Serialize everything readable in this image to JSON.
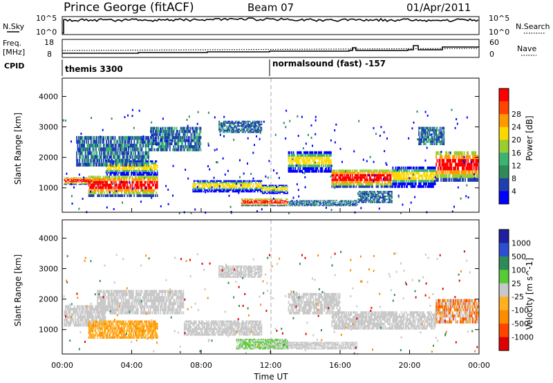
{
  "header": {
    "station": "Prince George (fitACF)",
    "beam": "Beam 07",
    "date": "01/Apr/2011"
  },
  "sky_panel": {
    "left_label": "N.Sky",
    "left_ticks": [
      "10^5",
      "10^0"
    ],
    "right_label": "N.Search",
    "right_ticks": [
      "10^5",
      "10^0"
    ]
  },
  "freq_panel": {
    "left_label_1": "Freq.",
    "left_label_2": "[MHz]",
    "left_ticks": [
      "18",
      "8"
    ],
    "right_label": "Nave",
    "right_ticks": [
      "60",
      "0"
    ]
  },
  "cpid": {
    "label": "CPID",
    "program_1": "themis 3300",
    "program_2": "normalsound (fast) -157"
  },
  "chart_data": [
    {
      "type": "heatmap",
      "name": "power",
      "ylabel": "Slant Range [km]",
      "yticks": [
        "1000",
        "2000",
        "3000",
        "4000"
      ],
      "ylim": [
        200,
        4600
      ],
      "xlim": [
        0,
        24
      ],
      "colorbar": {
        "label": "Power [dB]",
        "ticks": [
          "4",
          "8",
          "12",
          "16",
          "20",
          "24",
          "28"
        ],
        "colors": [
          "#0000ff",
          "#1f3fb0",
          "#2e8b57",
          "#3cb371",
          "#9acd32",
          "#ffd700",
          "#ff9900",
          "#ff4500",
          "#ff0000"
        ]
      },
      "echo_regions": [
        {
          "t0": 0.1,
          "t1": 2.5,
          "r0": 1100,
          "r1": 1350,
          "level": "high"
        },
        {
          "t0": 2.5,
          "t1": 5.5,
          "r0": 1400,
          "r1": 1900,
          "level": "medium"
        },
        {
          "t0": 1.5,
          "t1": 5.5,
          "r0": 700,
          "r1": 1400,
          "level": "high"
        },
        {
          "t0": 0.8,
          "t1": 5.0,
          "r0": 1700,
          "r1": 2700,
          "level": "low"
        },
        {
          "t0": 5.0,
          "t1": 8.0,
          "r0": 2200,
          "r1": 3000,
          "level": "low"
        },
        {
          "t0": 7.5,
          "t1": 11.5,
          "r0": 850,
          "r1": 1250,
          "level": "medium"
        },
        {
          "t0": 9.0,
          "t1": 11.5,
          "r0": 2800,
          "r1": 3200,
          "level": "low"
        },
        {
          "t0": 10.3,
          "t1": 13.0,
          "r0": 400,
          "r1": 650,
          "level": "high"
        },
        {
          "t0": 11.5,
          "t1": 13.0,
          "r0": 800,
          "r1": 1100,
          "level": "medium"
        },
        {
          "t0": 13.0,
          "t1": 15.5,
          "r0": 1500,
          "r1": 2200,
          "level": "medium"
        },
        {
          "t0": 13.0,
          "t1": 17.0,
          "r0": 400,
          "r1": 600,
          "level": "low"
        },
        {
          "t0": 15.5,
          "t1": 19.0,
          "r0": 1000,
          "r1": 1600,
          "level": "high"
        },
        {
          "t0": 19.0,
          "t1": 21.5,
          "r0": 1000,
          "r1": 1700,
          "level": "medium"
        },
        {
          "t0": 21.5,
          "t1": 24.0,
          "r0": 1200,
          "r1": 2200,
          "level": "high"
        },
        {
          "t0": 20.5,
          "t1": 22.0,
          "r0": 2400,
          "r1": 3000,
          "level": "low"
        },
        {
          "t0": 17.0,
          "t1": 19.0,
          "r0": 500,
          "r1": 900,
          "level": "low"
        }
      ]
    },
    {
      "type": "heatmap",
      "name": "velocity",
      "ylabel": "Slant Range [km]",
      "yticks": [
        "1000",
        "2000",
        "3000",
        "4000"
      ],
      "ylim": [
        200,
        4600
      ],
      "xlim": [
        0,
        24
      ],
      "xticks": [
        "00:00",
        "04:00",
        "08:00",
        "12:00",
        "16:00",
        "20:00",
        "00:00"
      ],
      "xlabel": "Time UT",
      "colorbar": {
        "label": "Velocity [m s^-1]",
        "ticks": [
          "1000",
          "500",
          "100",
          "25",
          "-25",
          "-100",
          "-500",
          "-1000"
        ],
        "colors": [
          "#2020a0",
          "#2b4fd0",
          "#2e8b57",
          "#55cc33",
          "#c8c8c8",
          "#ffb020",
          "#ff8c00",
          "#ff4500",
          "#e00000"
        ]
      },
      "echo_regions": [
        {
          "t0": 0.1,
          "t1": 2.5,
          "r0": 1100,
          "r1": 1800,
          "level": "ground"
        },
        {
          "t0": 1.5,
          "t1": 5.5,
          "r0": 700,
          "r1": 1300,
          "level": "neg"
        },
        {
          "t0": 2.0,
          "t1": 7.0,
          "r0": 1500,
          "r1": 2300,
          "level": "ground"
        },
        {
          "t0": 7.0,
          "t1": 11.5,
          "r0": 800,
          "r1": 1300,
          "level": "ground"
        },
        {
          "t0": 9.0,
          "t1": 11.5,
          "r0": 2700,
          "r1": 3100,
          "level": "ground"
        },
        {
          "t0": 10.0,
          "t1": 13.0,
          "r0": 350,
          "r1": 700,
          "level": "pos"
        },
        {
          "t0": 13.0,
          "t1": 16.0,
          "r0": 1500,
          "r1": 2200,
          "level": "ground"
        },
        {
          "t0": 15.5,
          "t1": 21.5,
          "r0": 1000,
          "r1": 1600,
          "level": "ground"
        },
        {
          "t0": 21.5,
          "t1": 24.0,
          "r0": 1200,
          "r1": 2000,
          "level": "mixed"
        },
        {
          "t0": 13.0,
          "t1": 17.0,
          "r0": 350,
          "r1": 600,
          "level": "ground"
        }
      ]
    }
  ]
}
